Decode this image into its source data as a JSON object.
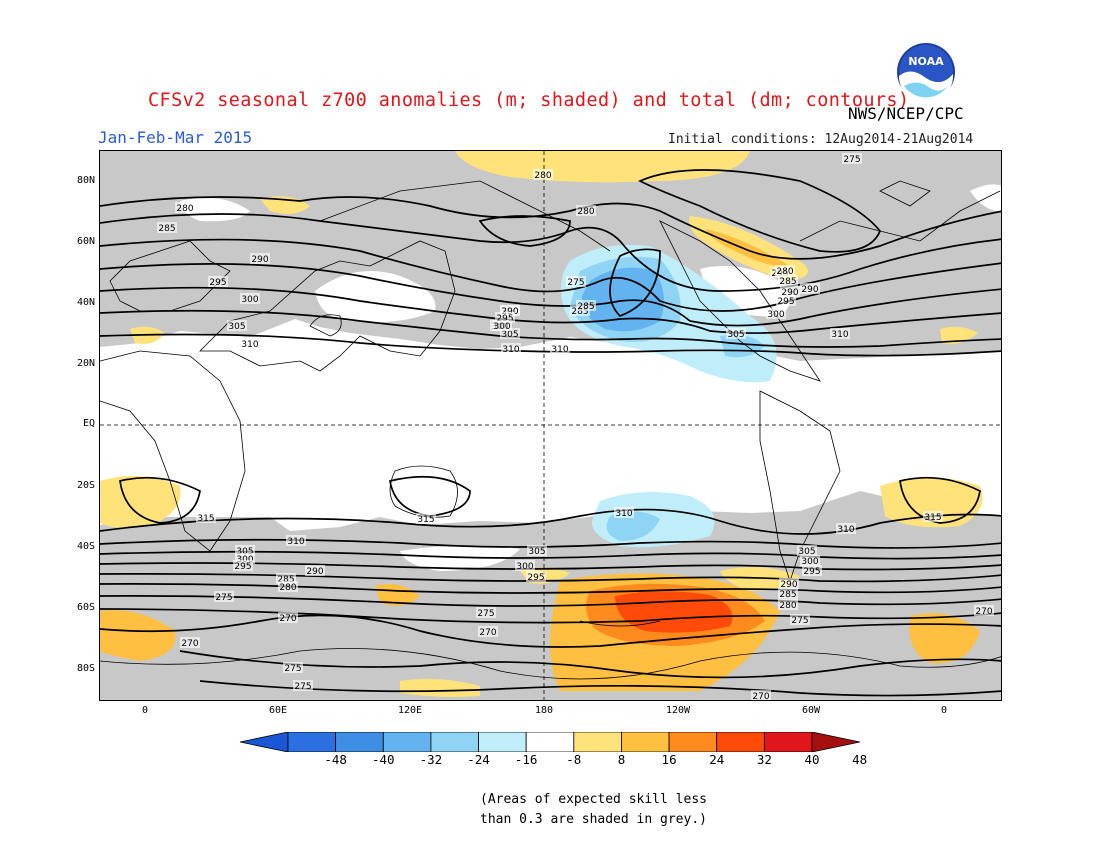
{
  "header": {
    "title": "CFSv2 seasonal z700 anomalies (m; shaded) and total (dm; contours)",
    "agency": "NWS/NCEP/CPC",
    "period": "Jan-Feb-Mar 2015",
    "initial_conditions": "Initial conditions: 12Aug2014-21Aug2014",
    "logo_text": "NOAA"
  },
  "map": {
    "lat_labels": [
      "80N",
      "60N",
      "40N",
      "20N",
      "EQ",
      "20S",
      "40S",
      "60S",
      "80S"
    ],
    "lon_labels": [
      "0",
      "60E",
      "120E",
      "180",
      "120W",
      "60W",
      "0"
    ],
    "contour_labels": [
      "275",
      "280",
      "280",
      "280",
      "285",
      "285",
      "290",
      "290",
      "295",
      "295",
      "300",
      "300",
      "300",
      "305",
      "305",
      "310",
      "310",
      "310",
      "285",
      "275",
      "290",
      "295",
      "300",
      "305",
      "310",
      "280",
      "285",
      "290",
      "295",
      "300",
      "315",
      "315",
      "315",
      "310",
      "305",
      "300",
      "295",
      "290",
      "285",
      "280",
      "275",
      "270",
      "270",
      "270",
      "275",
      "275",
      "270",
      "275",
      "305",
      "300",
      "295",
      "310",
      "310",
      "305",
      "300",
      "295",
      "290",
      "285",
      "280",
      "275",
      "270"
    ],
    "colors": {
      "grey_mask": "#c8c8c8",
      "pos_8_16": "#ffe27a",
      "pos_16_24": "#ffc041",
      "pos_24_32": "#ff8a1e",
      "pos_32_40": "#ff4a0a",
      "neg_8_16": "#bfeefa",
      "neg_16_24": "#8fd4f5",
      "neg_24_32": "#62b3ef",
      "neg_32_40": "#3f8ee6"
    }
  },
  "colorbar": {
    "labels": [
      "-48",
      "-40",
      "-32",
      "-24",
      "-16",
      "-8",
      "8",
      "16",
      "24",
      "32",
      "40",
      "48"
    ],
    "colors": [
      "#1a56d6",
      "#2b6fe0",
      "#3f8ee6",
      "#62b3ef",
      "#8fd4f5",
      "#bfeefa",
      "#ffffff",
      "#ffe27a",
      "#ffc041",
      "#ff8a1e",
      "#ff4a0a",
      "#e0161b",
      "#a50f0f"
    ]
  },
  "note": {
    "line1": "(Areas of expected skill less",
    "line2": "than 0.3 are shaded in grey.)"
  }
}
